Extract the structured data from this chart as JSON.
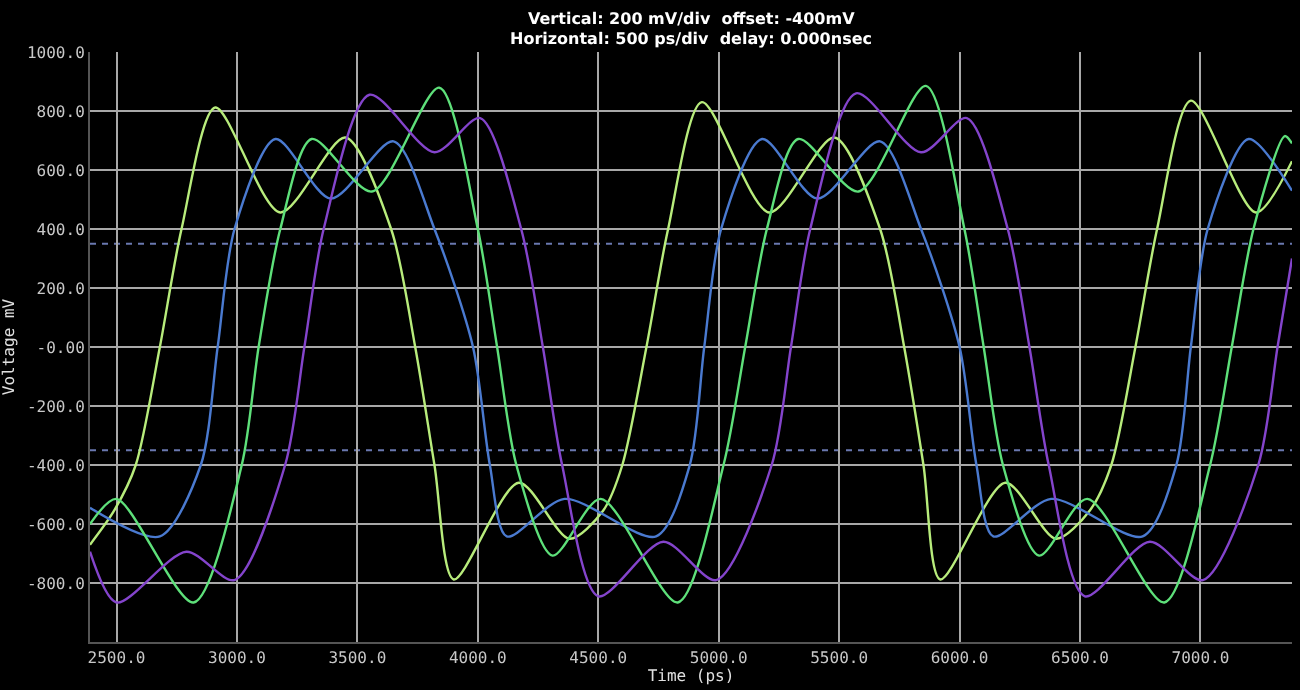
{
  "chart_data": {
    "type": "line",
    "title": "Vertical: 200 mV/div  offset: -400mV",
    "subtitle": "Horizontal: 500 ps/div  delay: 0.000nsec",
    "xlabel": "Time (ps)",
    "ylabel": "Voltage mV",
    "xlim": [
      2390,
      7380
    ],
    "xticks": [
      {
        "value": 2500,
        "label": "2500.0"
      },
      {
        "value": 3000,
        "label": "3000.0"
      },
      {
        "value": 3500,
        "label": "3500.0"
      },
      {
        "value": 4000,
        "label": "4000.0"
      },
      {
        "value": 4500,
        "label": "4500.0"
      },
      {
        "value": 5000,
        "label": "5000.0"
      },
      {
        "value": 5500,
        "label": "5500.0"
      },
      {
        "value": 6000,
        "label": "6000.0"
      },
      {
        "value": 6500,
        "label": "6500.0"
      },
      {
        "value": 7000,
        "label": "7000.0"
      }
    ],
    "ylim": [
      -1000,
      1000
    ],
    "yticks": [
      {
        "value": -800,
        "label": "-800.0"
      },
      {
        "value": -600,
        "label": "-600.0"
      },
      {
        "value": -400,
        "label": "-400.0"
      },
      {
        "value": -200,
        "label": "-200.0"
      },
      {
        "value": 0,
        "label": "-0.00"
      },
      {
        "value": 200,
        "label": "200.0"
      },
      {
        "value": 400,
        "label": "400.0"
      },
      {
        "value": 600,
        "label": "600.0"
      },
      {
        "value": 800,
        "label": "800.0"
      },
      {
        "value": 1000,
        "label": "1000.0"
      }
    ],
    "grid": true,
    "marker": "none",
    "line_style": "solid",
    "ref_lines": [
      {
        "axis": "y",
        "value": 350,
        "color": "#6a78b0",
        "line_style": "dotted"
      },
      {
        "axis": "y",
        "value": -350,
        "color": "#6a78b0",
        "line_style": "dotted"
      }
    ],
    "series": [
      {
        "color": "#b8ec7c",
        "x": [
          2390,
          2490,
          2580,
          2680,
          2770,
          2910,
          3180,
          3450,
          3640,
          3740,
          3820,
          3900,
          4170,
          4380,
          4520,
          4600,
          4700,
          4790,
          4930,
          5210,
          5480,
          5670,
          5770,
          5850,
          5920,
          6190,
          6400,
          6540,
          6630,
          6730,
          6820,
          6960,
          7230,
          7380
        ],
        "values": [
          -670,
          -555,
          -400,
          0,
          400,
          812,
          456,
          710,
          400,
          0,
          -400,
          -788,
          -460,
          -650,
          -555,
          -400,
          0,
          400,
          830,
          456,
          710,
          400,
          0,
          -400,
          -788,
          -460,
          -650,
          -555,
          -400,
          0,
          400,
          835,
          456,
          630
        ]
      },
      {
        "color": "#4a7ad0",
        "x": [
          2390,
          2680,
          2850,
          2920,
          2990,
          3160,
          3390,
          3650,
          3820,
          3980,
          4050,
          4120,
          4360,
          4740,
          4880,
          4940,
          5010,
          5180,
          5410,
          5670,
          5840,
          6000,
          6070,
          6140,
          6380,
          6760,
          6900,
          6960,
          7030,
          7200,
          7380
        ],
        "values": [
          -545,
          -642,
          -400,
          0,
          400,
          705,
          503,
          697,
          400,
          0,
          -400,
          -642,
          -515,
          -642,
          -400,
          0,
          400,
          705,
          503,
          697,
          400,
          0,
          -400,
          -642,
          -515,
          -642,
          -400,
          0,
          400,
          705,
          530
        ]
      },
      {
        "color": "#5ee07a",
        "x": [
          2390,
          2500,
          2820,
          3020,
          3090,
          3180,
          3310,
          3560,
          3840,
          4000,
          4080,
          4160,
          4310,
          4510,
          4830,
          5020,
          5110,
          5200,
          5330,
          5580,
          5860,
          6020,
          6100,
          6180,
          6330,
          6530,
          6850,
          7040,
          7130,
          7220,
          7350,
          7380
        ],
        "values": [
          -600,
          -515,
          -866,
          -400,
          0,
          400,
          705,
          527,
          879,
          400,
          0,
          -400,
          -707,
          -515,
          -866,
          -400,
          0,
          400,
          705,
          527,
          885,
          400,
          0,
          -400,
          -707,
          -515,
          -866,
          -400,
          0,
          400,
          715,
          690
        ]
      },
      {
        "color": "#8444cc",
        "x": [
          2390,
          2500,
          2790,
          2990,
          3200,
          3280,
          3360,
          3550,
          3820,
          4010,
          4180,
          4270,
          4350,
          4500,
          4770,
          4990,
          5220,
          5300,
          5380,
          5570,
          5840,
          6030,
          6200,
          6290,
          6370,
          6520,
          6790,
          7010,
          7240,
          7320,
          7380
        ],
        "values": [
          -694,
          -866,
          -694,
          -790,
          -400,
          0,
          400,
          855,
          660,
          776,
          400,
          0,
          -400,
          -845,
          -660,
          -790,
          -400,
          0,
          400,
          860,
          660,
          776,
          400,
          0,
          -400,
          -845,
          -660,
          -790,
          -400,
          0,
          300
        ]
      }
    ]
  }
}
